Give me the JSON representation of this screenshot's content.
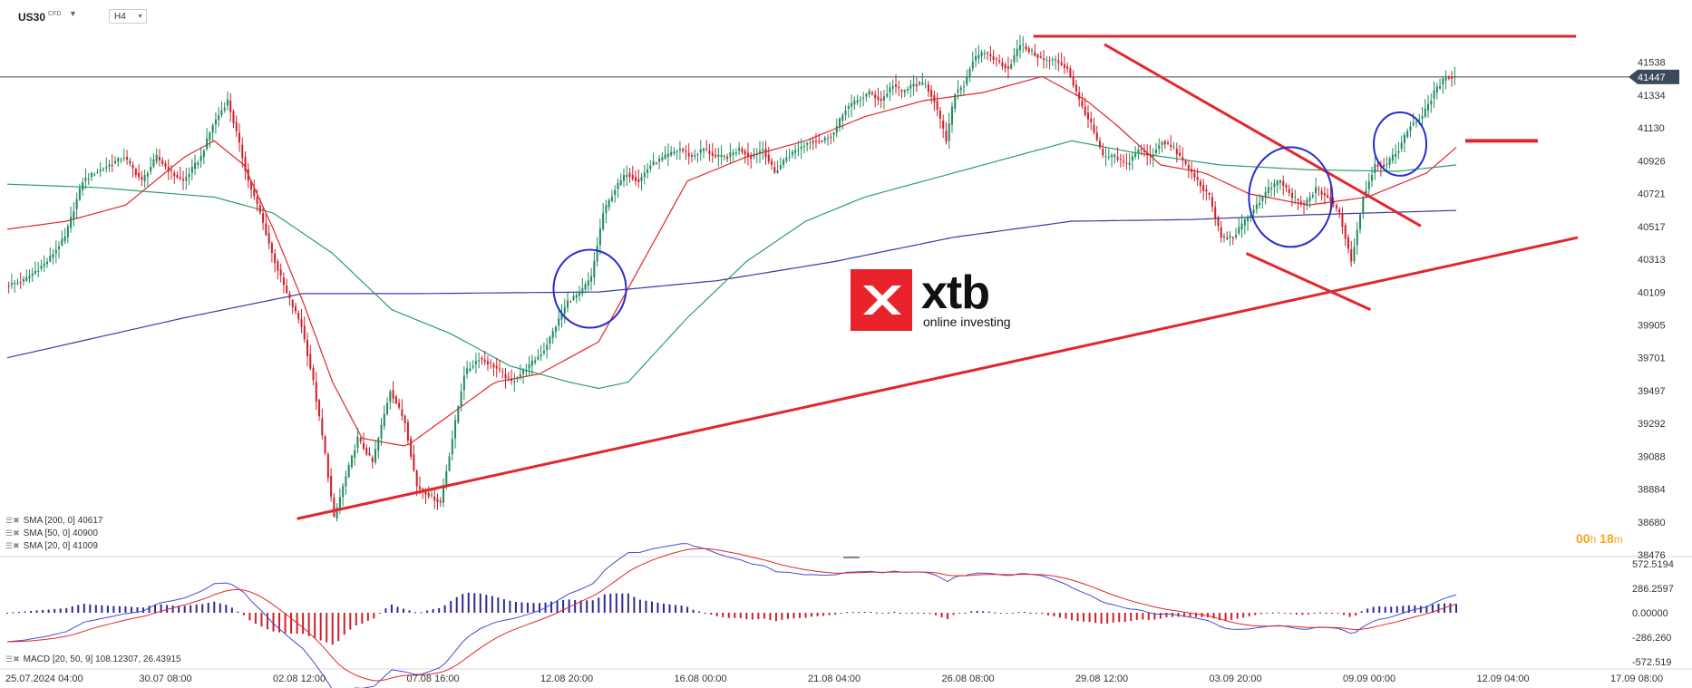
{
  "symbol": {
    "name": "US30",
    "type": "CFD",
    "timeframe": "H4"
  },
  "legend": [
    {
      "label": "SMA [200, 0] 40617",
      "color": "#3a3aa8"
    },
    {
      "label": "SMA [50, 0] 40900",
      "color": "#2e9e6a"
    },
    {
      "label": "SMA [20, 0] 41009",
      "color": "#e3262a"
    }
  ],
  "timer": {
    "hh": "00",
    "h": "h",
    "mm": "18",
    "m": "m"
  },
  "logo": {
    "text": "xtb",
    "subtitle": "online investing"
  },
  "macd_label": "MACD [20, 50, 9] 108.12307,  26.43915",
  "chart_data": [
    {
      "type": "candlestick",
      "symbol": "US30",
      "timeframe": "H4",
      "current_price": "41447",
      "ylim": [
        38476,
        41700
      ],
      "y_ticks": [
        "41538",
        "41334",
        "41130",
        "40926",
        "40721",
        "40517",
        "40313",
        "40109",
        "39905",
        "39701",
        "39497",
        "39292",
        "39088",
        "38884",
        "38680",
        "38476"
      ],
      "x_ticks": [
        "25.07.2024  04:00",
        "30.07  08:00",
        "02.08  12:00",
        "07.08  16:00",
        "12.08  20:00",
        "16.08  00:00",
        "21.08  04:00",
        "26.08  08:00",
        "29.08  12:00",
        "03.09  20:00",
        "09.09  00:00",
        "12.09  04:00",
        "17.09  08:00"
      ],
      "price_path": [
        [
          0,
          40150
        ],
        [
          6,
          40180
        ],
        [
          14,
          40300
        ],
        [
          20,
          40450
        ],
        [
          26,
          40800
        ],
        [
          30,
          40850
        ],
        [
          35,
          40900
        ],
        [
          40,
          40950
        ],
        [
          46,
          40800
        ],
        [
          51,
          40950
        ],
        [
          56,
          40850
        ],
        [
          60,
          40800
        ],
        [
          66,
          40950
        ],
        [
          70,
          41150
        ],
        [
          75,
          41300
        ],
        [
          78,
          41100
        ],
        [
          82,
          40800
        ],
        [
          86,
          40600
        ],
        [
          90,
          40350
        ],
        [
          95,
          40100
        ],
        [
          100,
          39900
        ],
        [
          104,
          39550
        ],
        [
          108,
          39100
        ],
        [
          111,
          38700
        ],
        [
          114,
          38900
        ],
        [
          119,
          39200
        ],
        [
          124,
          39050
        ],
        [
          130,
          39500
        ],
        [
          135,
          39300
        ],
        [
          139,
          38900
        ],
        [
          143,
          38850
        ],
        [
          147,
          38800
        ],
        [
          151,
          39200
        ],
        [
          155,
          39600
        ],
        [
          160,
          39700
        ],
        [
          165,
          39650
        ],
        [
          171,
          39550
        ],
        [
          177,
          39650
        ],
        [
          182,
          39750
        ],
        [
          186,
          39900
        ],
        [
          190,
          40050
        ],
        [
          194,
          40100
        ],
        [
          198,
          40200
        ],
        [
          202,
          40600
        ],
        [
          206,
          40750
        ],
        [
          210,
          40850
        ],
        [
          214,
          40800
        ],
        [
          218,
          40900
        ],
        [
          223,
          40950
        ],
        [
          228,
          41000
        ],
        [
          232,
          40950
        ],
        [
          236,
          41000
        ],
        [
          240,
          40950
        ],
        [
          244,
          40950
        ],
        [
          248,
          41000
        ],
        [
          252,
          40950
        ],
        [
          256,
          41000
        ],
        [
          260,
          40850
        ],
        [
          264,
          40950
        ],
        [
          268,
          41000
        ],
        [
          272,
          41050
        ],
        [
          276,
          41050
        ],
        [
          280,
          41100
        ],
        [
          284,
          41250
        ],
        [
          288,
          41300
        ],
        [
          292,
          41350
        ],
        [
          296,
          41300
        ],
        [
          300,
          41400
        ],
        [
          303,
          41350
        ],
        [
          307,
          41400
        ],
        [
          311,
          41400
        ],
        [
          314,
          41300
        ],
        [
          318,
          41050
        ],
        [
          321,
          41350
        ],
        [
          324,
          41400
        ],
        [
          327,
          41550
        ],
        [
          331,
          41600
        ],
        [
          335,
          41550
        ],
        [
          339,
          41500
        ],
        [
          343,
          41650
        ],
        [
          347,
          41600
        ],
        [
          351,
          41550
        ],
        [
          355,
          41550
        ],
        [
          359,
          41500
        ],
        [
          363,
          41300
        ],
        [
          367,
          41150
        ],
        [
          371,
          40950
        ],
        [
          375,
          40950
        ],
        [
          379,
          40900
        ],
        [
          383,
          41000
        ],
        [
          387,
          40950
        ],
        [
          391,
          41050
        ],
        [
          395,
          41000
        ],
        [
          399,
          40900
        ],
        [
          403,
          40800
        ],
        [
          407,
          40700
        ],
        [
          411,
          40450
        ],
        [
          415,
          40450
        ],
        [
          419,
          40550
        ],
        [
          423,
          40650
        ],
        [
          427,
          40750
        ],
        [
          431,
          40800
        ],
        [
          435,
          40700
        ],
        [
          439,
          40650
        ],
        [
          443,
          40750
        ],
        [
          447,
          40700
        ],
        [
          451,
          40600
        ],
        [
          455,
          40300
        ],
        [
          459,
          40700
        ],
        [
          463,
          40900
        ],
        [
          467,
          40900
        ],
        [
          471,
          41000
        ],
        [
          475,
          41150
        ],
        [
          479,
          41200
        ],
        [
          483,
          41350
        ],
        [
          487,
          41450
        ],
        [
          490,
          41447
        ]
      ],
      "sma200": [
        [
          0,
          39701
        ],
        [
          60,
          39950
        ],
        [
          100,
          40100
        ],
        [
          140,
          40100
        ],
        [
          200,
          40110
        ],
        [
          240,
          40180
        ],
        [
          280,
          40300
        ],
        [
          320,
          40450
        ],
        [
          360,
          40550
        ],
        [
          400,
          40560
        ],
        [
          440,
          40590
        ],
        [
          490,
          40617
        ]
      ],
      "sma50": [
        [
          0,
          40780
        ],
        [
          30,
          40760
        ],
        [
          70,
          40700
        ],
        [
          90,
          40600
        ],
        [
          110,
          40350
        ],
        [
          130,
          40000
        ],
        [
          150,
          39850
        ],
        [
          170,
          39650
        ],
        [
          190,
          39550
        ],
        [
          200,
          39510
        ],
        [
          210,
          39550
        ],
        [
          230,
          39950
        ],
        [
          250,
          40300
        ],
        [
          270,
          40550
        ],
        [
          290,
          40700
        ],
        [
          310,
          40800
        ],
        [
          330,
          40900
        ],
        [
          360,
          41050
        ],
        [
          380,
          40980
        ],
        [
          410,
          40900
        ],
        [
          440,
          40870
        ],
        [
          470,
          40860
        ],
        [
          490,
          40900
        ]
      ],
      "sma20": [
        [
          0,
          40500
        ],
        [
          20,
          40550
        ],
        [
          40,
          40650
        ],
        [
          60,
          40950
        ],
        [
          70,
          41050
        ],
        [
          80,
          40900
        ],
        [
          90,
          40500
        ],
        [
          100,
          40050
        ],
        [
          110,
          39550
        ],
        [
          120,
          39200
        ],
        [
          135,
          39150
        ],
        [
          150,
          39350
        ],
        [
          165,
          39550
        ],
        [
          180,
          39600
        ],
        [
          200,
          39800
        ],
        [
          215,
          40300
        ],
        [
          230,
          40800
        ],
        [
          250,
          40950
        ],
        [
          270,
          41050
        ],
        [
          290,
          41200
        ],
        [
          310,
          41300
        ],
        [
          330,
          41350
        ],
        [
          350,
          41450
        ],
        [
          365,
          41300
        ],
        [
          375,
          41150
        ],
        [
          390,
          40900
        ],
        [
          405,
          40850
        ],
        [
          420,
          40720
        ],
        [
          440,
          40650
        ],
        [
          460,
          40700
        ],
        [
          480,
          40850
        ],
        [
          490,
          41009
        ]
      ],
      "resistance_line": {
        "value": 41700
      },
      "target_line": {
        "value": 41050
      },
      "support_line": [
        [
          98,
          38700
        ],
        [
          420,
          40000
        ]
      ],
      "channel_upper": [
        [
          371,
          41650
        ],
        [
          478,
          40520
        ]
      ],
      "channel_lower": [
        [
          419,
          40350
        ],
        [
          461,
          40000
        ]
      ],
      "circles": [
        [
          197,
          40130
        ],
        [
          434,
          40700
        ],
        [
          471,
          41030
        ]
      ]
    },
    {
      "type": "macd",
      "params": "MACD [20, 50, 9]",
      "macd": 108.12307,
      "signal": 26.43915,
      "y_ticks": [
        "572.5194",
        "286.2597",
        "0.00000",
        "-286.260",
        "-572.519"
      ],
      "ylim": [
        -572.519,
        572.5194
      ]
    }
  ]
}
